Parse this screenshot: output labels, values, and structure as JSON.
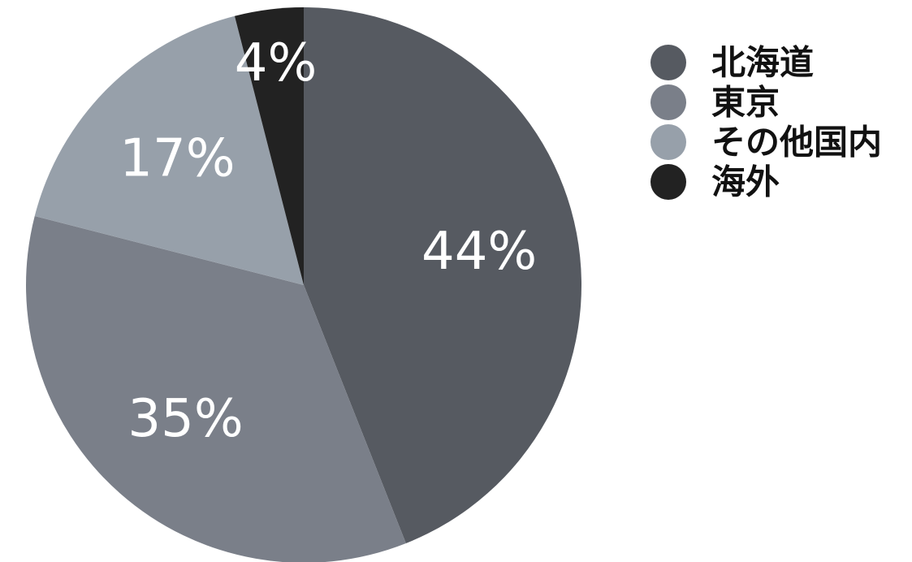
{
  "chart_data": {
    "type": "pie",
    "start_angle": "12 o'clock",
    "direction": "clockwise",
    "legend_position": "right",
    "slices": [
      {
        "label": "北海道",
        "value": 44,
        "value_label": "44%",
        "color": "#565a61"
      },
      {
        "label": "東京",
        "value": 35,
        "value_label": "35%",
        "color": "#7a7f89"
      },
      {
        "label": "その他国内",
        "value": 17,
        "value_label": "17%",
        "color": "#97a0aa"
      },
      {
        "label": "海外",
        "value": 4,
        "value_label": "4%",
        "color": "#222222"
      }
    ]
  }
}
